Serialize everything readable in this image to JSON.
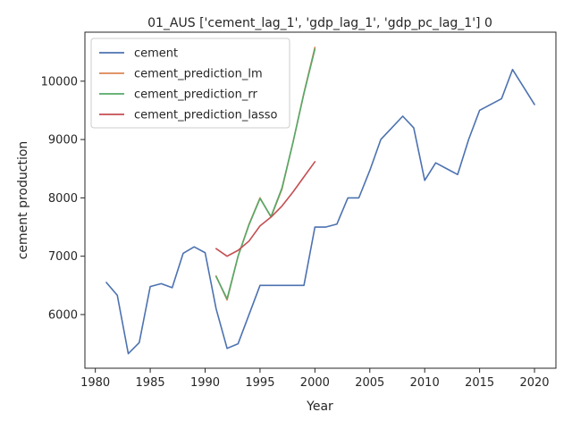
{
  "chart_data": {
    "type": "line",
    "title": "01_AUS ['cement_lag_1', 'gdp_lag_1', 'gdp_pc_lag_1'] 0",
    "xlabel": "Year",
    "ylabel": "cement production",
    "xlim": [
      1979.05,
      2021.95
    ],
    "ylim": [
      5080,
      10840
    ],
    "xticks": [
      1980,
      1985,
      1990,
      1995,
      2000,
      2005,
      2010,
      2015,
      2020
    ],
    "yticks": [
      6000,
      7000,
      8000,
      9000,
      10000
    ],
    "grid": false,
    "legend_position": "upper-left",
    "series": [
      {
        "name": "cement",
        "color": "#4c72b0",
        "x": [
          1981,
          1982,
          1983,
          1984,
          1985,
          1986,
          1987,
          1988,
          1989,
          1990,
          1991,
          1992,
          1993,
          1994,
          1995,
          1996,
          1997,
          1998,
          1999,
          2000,
          2001,
          2002,
          2003,
          2004,
          2005,
          2006,
          2007,
          2008,
          2009,
          2010,
          2011,
          2012,
          2013,
          2014,
          2015,
          2016,
          2017,
          2018,
          2019,
          2020
        ],
        "values": [
          6550,
          6330,
          5330,
          5520,
          6480,
          6530,
          6460,
          7050,
          7160,
          7060,
          6100,
          5420,
          5500,
          6000,
          6500,
          6500,
          6500,
          6500,
          6500,
          7500,
          7500,
          7550,
          8000,
          8000,
          8470,
          9000,
          9200,
          9400,
          9200,
          8300,
          8600,
          8500,
          8400,
          9000,
          9500,
          9600,
          9700,
          10200,
          9900,
          9600
        ]
      },
      {
        "name": "cement_prediction_lm",
        "color": "#dd8452",
        "x": [
          1991,
          1992,
          1993,
          1994,
          1995,
          1996,
          1997,
          1998,
          1999,
          2000
        ],
        "values": [
          6660,
          6250,
          7000,
          7550,
          8000,
          7670,
          8150,
          8950,
          9800,
          10580
        ]
      },
      {
        "name": "cement_prediction_rr",
        "color": "#55a868",
        "x": [
          1991,
          1992,
          1993,
          1994,
          1995,
          1996,
          1997,
          1998,
          1999,
          2000
        ],
        "values": [
          6650,
          6270,
          7000,
          7540,
          7990,
          7680,
          8170,
          8950,
          9790,
          10550
        ]
      },
      {
        "name": "cement_prediction_lasso",
        "color": "#c44e52",
        "x": [
          1991,
          1992,
          1993,
          1994,
          1995,
          1996,
          1997,
          1998,
          1999,
          2000
        ],
        "values": [
          7130,
          7000,
          7100,
          7260,
          7520,
          7670,
          7860,
          8100,
          8360,
          8620
        ]
      }
    ]
  }
}
